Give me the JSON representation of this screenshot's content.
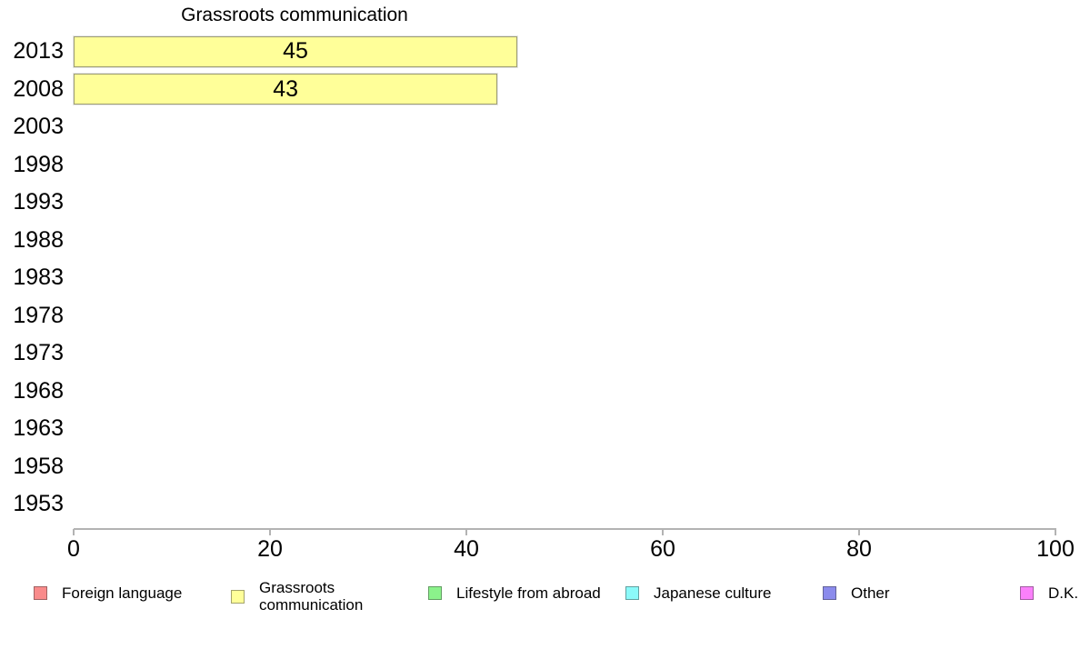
{
  "chart_data": {
    "type": "bar",
    "orientation": "horizontal",
    "title": "Grassroots communication",
    "categories": [
      "2013",
      "2008",
      "2003",
      "1998",
      "1993",
      "1988",
      "1983",
      "1978",
      "1973",
      "1968",
      "1963",
      "1958",
      "1953"
    ],
    "series": [
      {
        "name": "Grassroots communication",
        "color": "#ffff99",
        "values": [
          45,
          43,
          null,
          null,
          null,
          null,
          null,
          null,
          null,
          null,
          null,
          null,
          null
        ]
      }
    ],
    "bar_value_labels": [
      "45",
      "43"
    ],
    "xlabel": "",
    "ylabel": "",
    "xlim": [
      0,
      100
    ],
    "x_ticks": [
      0,
      20,
      40,
      60,
      80,
      100
    ],
    "grid": false,
    "legend_position": "bottom",
    "legend": [
      {
        "label": "Foreign language",
        "color": "#f98b8b"
      },
      {
        "label": "Grassroots communication",
        "color": "#ffff99"
      },
      {
        "label": "Lifestyle from abroad",
        "color": "#8bf28b"
      },
      {
        "label": "Japanese culture",
        "color": "#8bfafa"
      },
      {
        "label": "Other",
        "color": "#8b8bec"
      },
      {
        "label": "D.K.",
        "color": "#fa80fa"
      }
    ],
    "colors": {
      "axis": "#b3b3b3",
      "text": "#000000",
      "background": "#ffffff"
    }
  }
}
